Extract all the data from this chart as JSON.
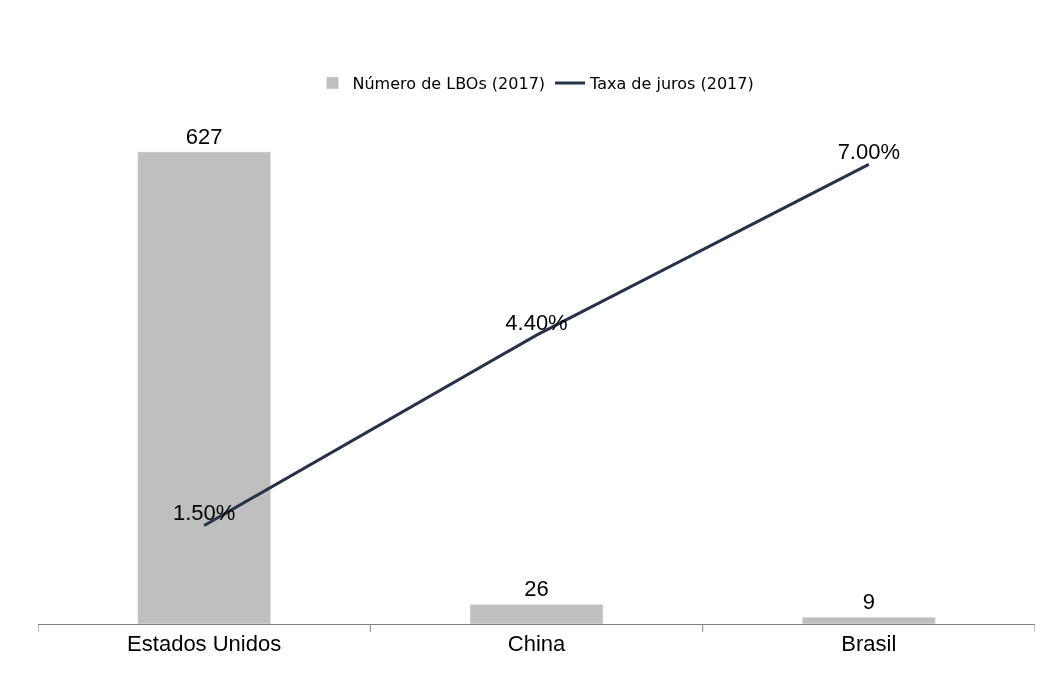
{
  "chart_data": {
    "type": "bar",
    "categories": [
      "Estados Unidos",
      "China",
      "Brasil"
    ],
    "series": [
      {
        "name": "Número de LBOs (2017)",
        "color": "#bfbfbf",
        "values": [
          627,
          26,
          9
        ],
        "value_labels": [
          "627",
          "26",
          "9"
        ]
      },
      {
        "name": "Taxa de juros (2017)",
        "type": "line",
        "axis": "y2",
        "color": "#263248",
        "values": [
          1.5,
          4.4,
          7.0
        ],
        "value_labels": [
          "1.50%",
          "4.40%",
          "7.00%"
        ]
      }
    ],
    "tick_labels": "x",
    "legend": "top",
    "marker": "none",
    "line_style": "solid"
  }
}
